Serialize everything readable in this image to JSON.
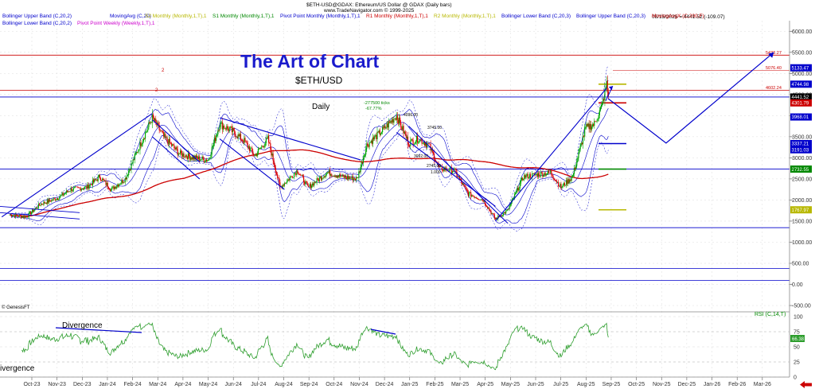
{
  "header": {
    "title": "$ETH-USD@GDAX:  Ethereum/US Dollar @ GDAX  (Daily bars)",
    "url": "www.TradeNavigator.com © 1999-2025",
    "date_value": "08/15/2025 = 4441.52 (-109.07)"
  },
  "legend": [
    {
      "text": "Bollinger Upper Band (C,20,2)",
      "color": "#0000cc"
    },
    {
      "text": "MovingAvg (C,20)",
      "color": "#0000cc"
    },
    {
      "text": "S2 Monthly (Monthly,1,T),1",
      "color": "#b8b800"
    },
    {
      "text": "S1 Monthly (Monthly,1,T),1",
      "color": "#008800"
    },
    {
      "text": "Pivot Point Monthly (Monthly,1,T),1",
      "color": "#0000cc"
    },
    {
      "text": "R1 Monthly (Monthly,1,T),1",
      "color": "#cc0000"
    },
    {
      "text": "R2 Monthly (Monthly,1,T),1",
      "color": "#b8b800"
    },
    {
      "text": "Bollinger Lower Band (C,20,3)",
      "color": "#0000cc"
    },
    {
      "text": "Bollinger Upper Band (C,20,3)",
      "color": "#0000cc"
    },
    {
      "text": "MovingAvgX (C,200,F)",
      "color": "#cc0000"
    },
    {
      "text": "Bollinger Lower Band (C,20,2)",
      "color": "#0000cc"
    },
    {
      "text": "Pivot Point Weekly (Weekly,1,T),1",
      "color": "#cc00cc"
    }
  ],
  "annotations": {
    "brand": "The Art of Chart",
    "symbol": "$ETH/USD",
    "timeframe": "Daily",
    "ticks_line1": "-277500 ticks",
    "ticks_line2": "-67.77%",
    "genesis": "© GenesisFT",
    "rsi_label": "RSI (C,14,T)",
    "divergence1": "Divergence",
    "divergence2": "ivergence",
    "two_a": "2",
    "two_b": "2",
    "ann_4096": "4096.00",
    "ann_3745": "3745.00",
    "ann_3092": "3092.00",
    "ann_2745": "2745.00",
    "ann_1000": "1.000"
  },
  "colors": {
    "blue": "#0000cc",
    "red": "#cc0000",
    "green": "#008800",
    "olive": "#b8b800",
    "brand_blue": "#1a1acc",
    "rsi_green": "#2e9e2e",
    "grid": "#dcdcdc"
  },
  "chart_data": {
    "type": "candlestick",
    "x_ticks": [
      "Oct-23",
      "Nov-23",
      "Dec-23",
      "Jan-24",
      "Feb-24",
      "Mar-24",
      "Apr-24",
      "May-24",
      "Jun-24",
      "Jul-24",
      "Aug-24",
      "Sep-24",
      "Oct-24",
      "Nov-24",
      "Dec-24",
      "Jan-25",
      "Feb-25",
      "Mar-25",
      "Apr-25",
      "May-25",
      "Jun-25",
      "Jul-25",
      "Aug-25",
      "Sep-25",
      "Oct-25",
      "Nov-25",
      "Dec-25",
      "Jan-26",
      "Feb-26",
      "Mar-26"
    ],
    "y_ticks": [
      6000,
      5500,
      5000,
      4500,
      4000,
      3500,
      3000,
      2500,
      2000,
      1500,
      1000,
      500,
      0,
      -500
    ],
    "y_tick_labels": [
      "6000.00",
      "5500.00",
      "5000.00",
      "4500.00",
      "4000.00",
      "3500.00",
      "3000.00",
      "2500.00",
      "2000.00",
      "1500.00",
      "1000.00",
      "500.00",
      "0.00",
      "-500.00"
    ],
    "ylim": [
      -650,
      6250
    ],
    "rsi_ticks": [
      100,
      75,
      50,
      25,
      0
    ],
    "rsi_value": "66.38",
    "rsi_last": 66.38,
    "price_series": [
      [
        "2023-10-01",
        1650
      ],
      [
        "2023-10-20",
        1600
      ],
      [
        "2023-11-05",
        1900
      ],
      [
        "2023-11-25",
        2050
      ],
      [
        "2023-12-10",
        2250
      ],
      [
        "2023-12-28",
        2300
      ],
      [
        "2024-01-12",
        2550
      ],
      [
        "2024-01-25",
        2250
      ],
      [
        "2024-02-10",
        2500
      ],
      [
        "2024-02-28",
        3350
      ],
      [
        "2024-03-12",
        3950
      ],
      [
        "2024-03-25",
        3500
      ],
      [
        "2024-04-12",
        3100
      ],
      [
        "2024-04-28",
        3000
      ],
      [
        "2024-05-15",
        2950
      ],
      [
        "2024-05-28",
        3800
      ],
      [
        "2024-06-10",
        3650
      ],
      [
        "2024-06-25",
        3400
      ],
      [
        "2024-07-07",
        3050
      ],
      [
        "2024-07-22",
        3450
      ],
      [
        "2024-08-05",
        2300
      ],
      [
        "2024-08-25",
        2700
      ],
      [
        "2024-09-06",
        2300
      ],
      [
        "2024-09-28",
        2650
      ],
      [
        "2024-10-15",
        2550
      ],
      [
        "2024-11-01",
        2500
      ],
      [
        "2024-11-12",
        3300
      ],
      [
        "2024-11-30",
        3650
      ],
      [
        "2024-12-16",
        4000
      ],
      [
        "2024-12-30",
        3350
      ],
      [
        "2025-01-10",
        3450
      ],
      [
        "2025-01-22",
        3300
      ],
      [
        "2025-02-03",
        2750
      ],
      [
        "2025-02-20",
        2700
      ],
      [
        "2025-03-08",
        2150
      ],
      [
        "2025-03-25",
        2000
      ],
      [
        "2025-04-08",
        1550
      ],
      [
        "2025-04-22",
        1750
      ],
      [
        "2025-05-10",
        2550
      ],
      [
        "2025-05-25",
        2600
      ],
      [
        "2025-06-10",
        2650
      ],
      [
        "2025-06-22",
        2300
      ],
      [
        "2025-07-05",
        2550
      ],
      [
        "2025-07-20",
        3700
      ],
      [
        "2025-07-30",
        3800
      ],
      [
        "2025-08-08",
        4250
      ],
      [
        "2025-08-13",
        4750
      ],
      [
        "2025-08-15",
        4441.52
      ]
    ],
    "horizontal_levels": [
      {
        "value": 5433.27,
        "label": "5433.27",
        "color": "#cc0000"
      },
      {
        "value": 4602.24,
        "label": "4602.24",
        "color": "#cc0000"
      },
      {
        "value": 4441.52,
        "label": "",
        "color": "#0000cc"
      },
      {
        "value": 2732.55,
        "label": "",
        "color": "#0000cc"
      },
      {
        "value": 1345,
        "label": "",
        "color": "#0000cc"
      },
      {
        "value": 375,
        "label": "",
        "color": "#0000cc"
      },
      {
        "value": 95,
        "label": "",
        "color": "#0000cc"
      }
    ],
    "marker_labels": [
      {
        "value": 5133.47,
        "label": "5133.47",
        "color": "#0000cc"
      },
      {
        "value": 4744.98,
        "label": "4744.98",
        "color": "#0000cc"
      },
      {
        "value": 4441.52,
        "label": "4441.52",
        "color": "#000000"
      },
      {
        "value": 4301.79,
        "label": "4301.79",
        "color": "#cc0000"
      },
      {
        "value": 3968.01,
        "label": "3968.01",
        "color": "#0000cc"
      },
      {
        "value": 3337.21,
        "label": "3337.21",
        "color": "#0000cc"
      },
      {
        "value": 3191.03,
        "label": "3191.03",
        "color": "#0000cc"
      },
      {
        "value": 2732.55,
        "label": "2732.55",
        "color": "#008800"
      },
      {
        "value": 1767.97,
        "label": "1767.97",
        "color": "#b8b800"
      }
    ],
    "price_labels": [
      {
        "value": 5076.4,
        "label": "5076.40"
      }
    ]
  }
}
